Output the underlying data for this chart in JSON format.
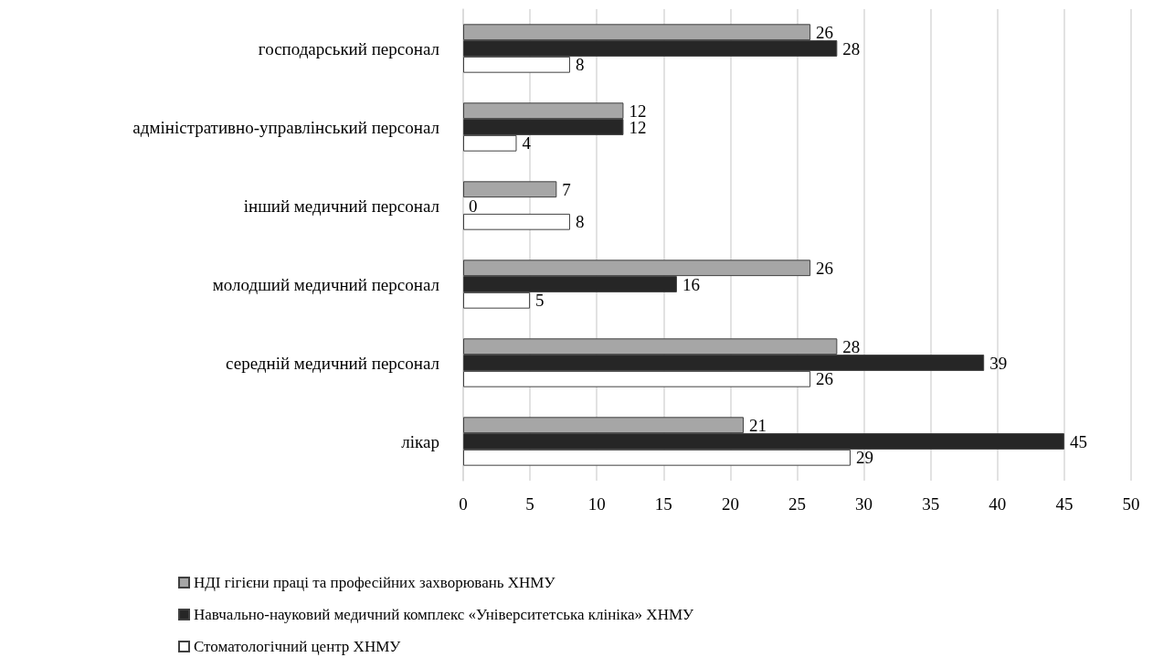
{
  "chart_data": {
    "type": "bar",
    "orientation": "horizontal",
    "categories": [
      "господарський персонал",
      "адміністративно-управлінський персонал",
      "інший медичний персонал",
      "молодший медичний персонал",
      "середній медичний персонал",
      "лікар"
    ],
    "series": [
      {
        "name": "НДІ гігієни праці та професійних захворювань ХНМУ",
        "color": "#a6a6a6",
        "values": [
          26,
          12,
          7,
          26,
          28,
          21
        ]
      },
      {
        "name": "Навчально-науковий медичний комплекс «Університетська клініка» ХНМУ",
        "color": "#262626",
        "values": [
          28,
          12,
          0,
          16,
          39,
          45
        ]
      },
      {
        "name": "Стоматологічний центр ХНМУ",
        "color": "#ffffff",
        "values": [
          8,
          4,
          8,
          5,
          26,
          29
        ]
      }
    ],
    "xlim": [
      0,
      50
    ],
    "xticks": [
      0,
      5,
      10,
      15,
      20,
      25,
      30,
      35,
      40,
      45,
      50
    ],
    "grid": "x",
    "legend": "bottom",
    "data_labels": true
  }
}
